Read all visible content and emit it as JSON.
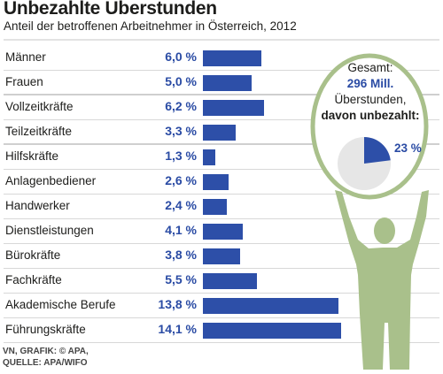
{
  "chart_data": {
    "type": "bar",
    "title": "Unbezahlte Überstunden",
    "subtitle": "Anteil der betroffenen Arbeitnehmer in Österreich, 2012",
    "categories": [
      "Männer",
      "Frauen",
      "Vollzeitkräfte",
      "Teilzeitkräfte",
      "Hilfskräfte",
      "Anlagenbediener",
      "Handwerker",
      "Dienstleistungen",
      "Bürokräfte",
      "Fachkräfte",
      "Akademische Berufe",
      "Führungskräfte"
    ],
    "values": [
      6.0,
      5.0,
      6.2,
      3.3,
      1.3,
      2.6,
      2.4,
      4.1,
      3.8,
      5.5,
      13.8,
      14.1
    ],
    "value_labels": [
      "6,0 %",
      "5,0 %",
      "6,2 %",
      "3,3 %",
      "1,3 %",
      "2,6 %",
      "2,4 %",
      "4,1 %",
      "3,8 %",
      "5,5 %",
      "13,8 %",
      "14,1 %"
    ],
    "unit": "%",
    "xlim": [
      0,
      14.1
    ],
    "bar_color": "#2d4fa8",
    "inset": {
      "type": "pie",
      "line1": "Gesamt:",
      "line2": "296 Mill.",
      "line3": "Überstunden,",
      "line4": "davon unbezahlt:",
      "slice_value": 23,
      "slice_label": "23 %",
      "slice_color": "#2d4fa8",
      "rest_color": "#e6e6e6",
      "ring_color": "#a9c08b"
    }
  },
  "source": {
    "line1": "VN, GRAFIK: © APA,",
    "line2": "QUELLE: APA/WIFO"
  }
}
